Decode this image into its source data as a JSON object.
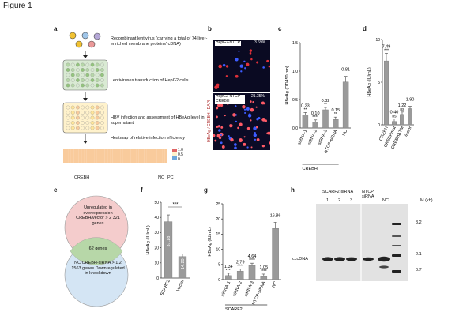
{
  "figure_title": "Figure 1",
  "panel_a": {
    "label": "a",
    "steps": [
      "Recombinant lentivirus (carrying a total of 74 liver-enriched membrane proteins' cDNA)",
      "Lentiviruses transduction of HepG2 cells",
      "HBV infection and assessment of HBeAg level in supernatant",
      "Heatmap of relative infection efficiency"
    ],
    "heatmap_label": "CREBH",
    "nc_label": "NC",
    "pc_label": "PC",
    "scale_ticks": [
      "1.0",
      "0.5",
      "0"
    ]
  },
  "panel_b": {
    "label": "b",
    "axis_label": "HBeAg / CREBH / DAPI",
    "top_label": "HepG2-NTCP",
    "top_pct": "3.69%",
    "bottom_label": "HepG2-NTCP CREBH",
    "bottom_pct": "21.35%"
  },
  "panel_e": {
    "label": "e",
    "top_text": "Upregulated in overexpression CREBH/vector > 2 321 genes",
    "mid_text": "62 genes",
    "bottom_text": "NC/CREBH-siRNA > 1.2 1563 genes Downregulated in knockdown"
  },
  "panel_h": {
    "label": "h",
    "scarf2_label": "SCARF2-siRNA",
    "ntcp_label": "NTCP siRNA",
    "nc_label": "NC",
    "m_label": "M (kb)",
    "lanes": [
      "1",
      "2",
      "3"
    ],
    "cccdna_label": "cccDNA",
    "markers": [
      "3.2",
      "2.1",
      "0.7"
    ]
  },
  "chart_data": [
    {
      "panel": "c",
      "type": "bar",
      "ylabel": "HBeAg (OD450 nm)",
      "ylim": [
        0,
        1.5
      ],
      "yticks": [
        "0.0",
        "0.5",
        "1.0",
        "1.5"
      ],
      "categories": [
        "siRNA-1",
        "siRNA-2",
        "siRNA-3",
        "NTCP-siRNA",
        "NC"
      ],
      "group_label": "CREBH",
      "values": [
        0.23,
        0.1,
        0.32,
        0.15,
        0.81
      ],
      "value_labels": [
        "0.23",
        "0.10",
        "0.32",
        "0.15",
        "0.81"
      ],
      "sig": [
        "**",
        "****",
        "**",
        "**",
        ""
      ]
    },
    {
      "panel": "d",
      "type": "bar",
      "ylabel": "HBeAg (IU/mL)",
      "ylim": [
        0,
        10
      ],
      "yticks": [
        "0",
        "5",
        "10"
      ],
      "categories": [
        "CREBH",
        "CREBHmut",
        "CREBHΔTM",
        "Vector"
      ],
      "values": [
        7.49,
        0.4,
        1.22,
        1.9
      ],
      "value_labels": [
        "7.49",
        "0.40",
        "1.22",
        "1.90"
      ],
      "sig": [
        "***",
        "ns",
        "ns",
        ""
      ]
    },
    {
      "panel": "f",
      "type": "bar",
      "ylabel": "HBeAg (IU/mL)",
      "ylim": [
        0,
        50
      ],
      "yticks": [
        "0",
        "10",
        "20",
        "30",
        "40",
        "50"
      ],
      "categories": [
        "SCARF2",
        "Vector"
      ],
      "values": [
        37.18,
        14.2
      ],
      "value_labels": [
        "37.18",
        "14.20"
      ],
      "sig": [
        "***"
      ]
    },
    {
      "panel": "g",
      "type": "bar",
      "ylabel": "HBeAg (IU/mL)",
      "ylim": [
        0,
        25
      ],
      "yticks": [
        "0",
        "5",
        "10",
        "15",
        "20",
        "25"
      ],
      "categories": [
        "siRNA-1",
        "siRNA-2",
        "siRNA-3",
        "NTCP-siRNA",
        "NC"
      ],
      "group_label": "SCARF2",
      "values": [
        1.34,
        2.79,
        4.64,
        1.05,
        16.86
      ],
      "value_labels": [
        "1.34",
        "2.79",
        "4.64",
        "1.05",
        "16.86"
      ],
      "sig": [
        "****",
        "****",
        "****",
        "****",
        ""
      ]
    }
  ]
}
